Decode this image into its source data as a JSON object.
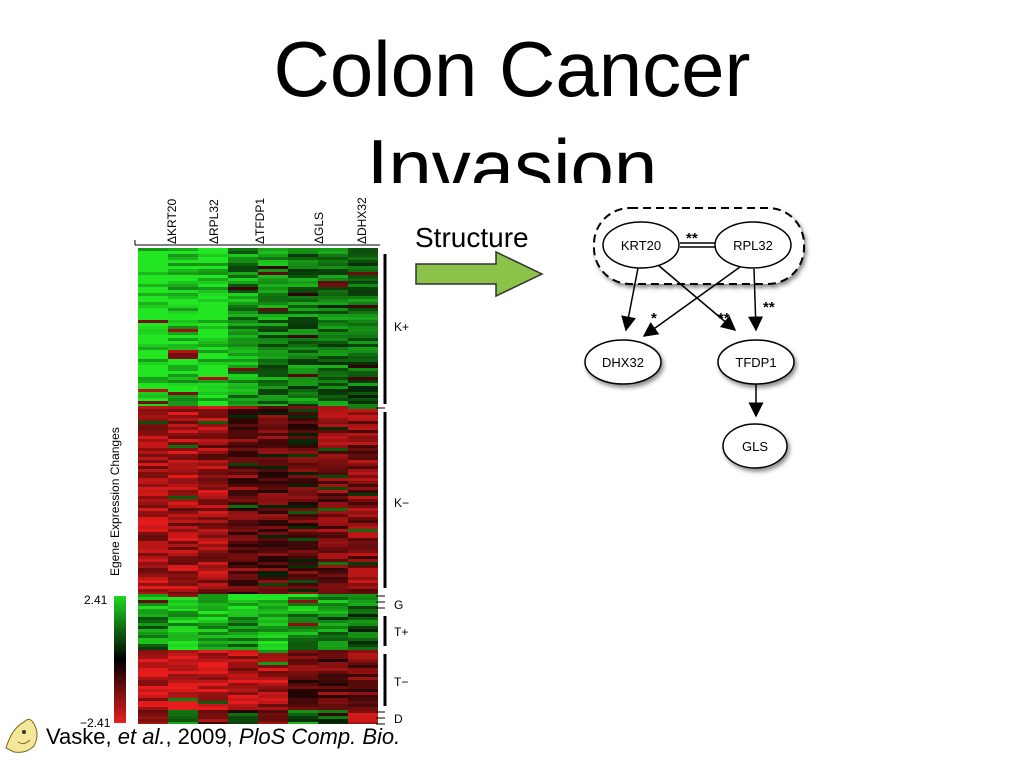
{
  "title": {
    "line1": "Colon Cancer",
    "line2": "Invasion"
  },
  "heatmap": {
    "columns": [
      "ΔKRT20",
      "ΔRPL32",
      "ΔTFDP1",
      "ΔGLS",
      "ΔDHX32"
    ],
    "y_label": "Egene Expression Changes",
    "clusters": [
      "K+",
      "K−",
      "G",
      "T+",
      "T−",
      "D"
    ],
    "scale_max": "2.41",
    "scale_min": "−2.41"
  },
  "structure_label": "Structure",
  "network": {
    "nodes": [
      "KRT20",
      "RPL32",
      "DHX32",
      "TFDP1",
      "GLS"
    ],
    "annotations": [
      "**",
      "*",
      "**",
      "**"
    ]
  },
  "citation": {
    "authors": "Vaske, ",
    "etal": "et al.",
    "year": ", 2009, ",
    "journal": "PloS Comp. Bio."
  },
  "colors": {
    "green": "#22b422",
    "red": "#c81e1e",
    "arrow_fill": "#8bc34a"
  }
}
